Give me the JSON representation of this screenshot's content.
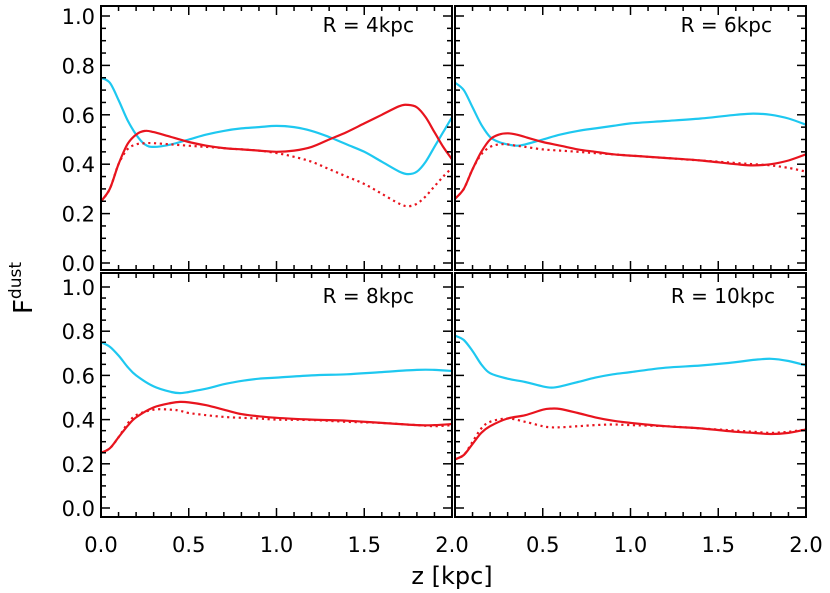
{
  "figure": {
    "ylabel": "F",
    "ylabel_sup": "dust",
    "xlabel": "z [kpc]"
  },
  "colors": {
    "cyan": "#1ec8f0",
    "red": "#e8141e",
    "axis": "#000000"
  },
  "chart_data": [
    {
      "type": "line",
      "title": "R = 4kpc",
      "xlim": [
        0,
        2
      ],
      "ylim": [
        0,
        1
      ],
      "xticks": [],
      "yticks": [
        "0.0",
        "0.2",
        "0.4",
        "0.6",
        "0.8",
        "1.0"
      ],
      "series": [
        {
          "name": "cyan-solid",
          "style": "solid",
          "color": "cyan",
          "x": [
            0,
            0.05,
            0.1,
            0.15,
            0.2,
            0.25,
            0.3,
            0.4,
            0.5,
            0.6,
            0.7,
            0.8,
            0.9,
            1.0,
            1.1,
            1.2,
            1.3,
            1.4,
            1.5,
            1.6,
            1.7,
            1.75,
            1.8,
            1.85,
            1.9,
            1.95,
            2.0
          ],
          "y": [
            0.75,
            0.73,
            0.66,
            0.58,
            0.52,
            0.48,
            0.47,
            0.48,
            0.5,
            0.52,
            0.535,
            0.545,
            0.55,
            0.555,
            0.55,
            0.535,
            0.51,
            0.48,
            0.45,
            0.41,
            0.37,
            0.36,
            0.37,
            0.41,
            0.47,
            0.53,
            0.59
          ]
        },
        {
          "name": "red-solid",
          "style": "solid",
          "color": "red",
          "x": [
            0,
            0.05,
            0.1,
            0.15,
            0.2,
            0.25,
            0.3,
            0.4,
            0.5,
            0.6,
            0.7,
            0.8,
            0.9,
            1.0,
            1.1,
            1.2,
            1.3,
            1.4,
            1.5,
            1.6,
            1.7,
            1.75,
            1.8,
            1.85,
            1.9,
            1.95,
            2.0
          ],
          "y": [
            0.25,
            0.3,
            0.4,
            0.48,
            0.52,
            0.535,
            0.53,
            0.51,
            0.49,
            0.475,
            0.465,
            0.46,
            0.455,
            0.45,
            0.455,
            0.47,
            0.5,
            0.53,
            0.565,
            0.6,
            0.635,
            0.64,
            0.63,
            0.59,
            0.53,
            0.47,
            0.42
          ]
        },
        {
          "name": "red-dotted",
          "style": "dotted",
          "color": "red",
          "x": [
            0,
            0.05,
            0.1,
            0.15,
            0.2,
            0.25,
            0.3,
            0.4,
            0.5,
            0.6,
            0.7,
            0.8,
            0.9,
            1.0,
            1.1,
            1.2,
            1.3,
            1.4,
            1.5,
            1.6,
            1.7,
            1.75,
            1.8,
            1.85,
            1.9,
            1.95,
            2.0
          ],
          "y": [
            0.25,
            0.3,
            0.4,
            0.46,
            0.48,
            0.485,
            0.485,
            0.48,
            0.475,
            0.47,
            0.465,
            0.46,
            0.455,
            0.445,
            0.43,
            0.41,
            0.38,
            0.35,
            0.32,
            0.28,
            0.24,
            0.23,
            0.24,
            0.27,
            0.31,
            0.35,
            0.385
          ]
        }
      ]
    },
    {
      "type": "line",
      "title": "R = 6kpc",
      "xlim": [
        0,
        2
      ],
      "ylim": [
        0,
        1
      ],
      "xticks": [],
      "yticks": [],
      "series": [
        {
          "name": "cyan-solid",
          "style": "solid",
          "color": "cyan",
          "x": [
            0,
            0.05,
            0.1,
            0.15,
            0.2,
            0.25,
            0.3,
            0.35,
            0.4,
            0.5,
            0.6,
            0.7,
            0.8,
            0.9,
            1.0,
            1.2,
            1.4,
            1.6,
            1.7,
            1.8,
            1.9,
            2.0
          ],
          "y": [
            0.73,
            0.7,
            0.63,
            0.56,
            0.51,
            0.49,
            0.48,
            0.475,
            0.48,
            0.5,
            0.52,
            0.535,
            0.545,
            0.555,
            0.565,
            0.575,
            0.585,
            0.6,
            0.605,
            0.6,
            0.585,
            0.56
          ]
        },
        {
          "name": "red-solid",
          "style": "solid",
          "color": "red",
          "x": [
            0,
            0.05,
            0.1,
            0.15,
            0.2,
            0.25,
            0.3,
            0.35,
            0.4,
            0.5,
            0.6,
            0.7,
            0.8,
            0.9,
            1.0,
            1.2,
            1.4,
            1.6,
            1.7,
            1.8,
            1.9,
            2.0
          ],
          "y": [
            0.26,
            0.3,
            0.38,
            0.45,
            0.5,
            0.52,
            0.525,
            0.52,
            0.51,
            0.49,
            0.475,
            0.46,
            0.45,
            0.44,
            0.435,
            0.425,
            0.415,
            0.4,
            0.395,
            0.4,
            0.415,
            0.44
          ]
        },
        {
          "name": "red-dotted",
          "style": "dotted",
          "color": "red",
          "x": [
            0,
            0.05,
            0.1,
            0.15,
            0.2,
            0.25,
            0.3,
            0.35,
            0.4,
            0.5,
            0.6,
            0.7,
            0.8,
            0.9,
            1.0,
            1.2,
            1.4,
            1.6,
            1.7,
            1.8,
            1.9,
            2.0
          ],
          "y": [
            0.26,
            0.3,
            0.38,
            0.44,
            0.47,
            0.48,
            0.48,
            0.475,
            0.47,
            0.46,
            0.455,
            0.45,
            0.445,
            0.44,
            0.435,
            0.425,
            0.415,
            0.405,
            0.4,
            0.395,
            0.385,
            0.37
          ]
        }
      ]
    },
    {
      "type": "line",
      "title": "R = 8kpc",
      "xlim": [
        0,
        2
      ],
      "ylim": [
        0,
        1
      ],
      "xticks": [
        "0.0",
        "0.5",
        "1.0",
        "1.5",
        "2.0"
      ],
      "yticks": [
        "0.0",
        "0.2",
        "0.4",
        "0.6",
        "0.8",
        "1.0"
      ],
      "series": [
        {
          "name": "cyan-solid",
          "style": "solid",
          "color": "cyan",
          "x": [
            0,
            0.05,
            0.1,
            0.15,
            0.2,
            0.3,
            0.4,
            0.45,
            0.5,
            0.6,
            0.7,
            0.8,
            0.9,
            1.0,
            1.2,
            1.4,
            1.6,
            1.8,
            1.9,
            2.0
          ],
          "y": [
            0.75,
            0.73,
            0.69,
            0.64,
            0.6,
            0.55,
            0.525,
            0.52,
            0.525,
            0.54,
            0.56,
            0.575,
            0.585,
            0.59,
            0.6,
            0.605,
            0.615,
            0.625,
            0.625,
            0.62
          ]
        },
        {
          "name": "red-solid",
          "style": "solid",
          "color": "red",
          "x": [
            0,
            0.05,
            0.1,
            0.15,
            0.2,
            0.3,
            0.4,
            0.45,
            0.5,
            0.6,
            0.7,
            0.8,
            0.9,
            1.0,
            1.2,
            1.4,
            1.6,
            1.8,
            1.9,
            2.0
          ],
          "y": [
            0.25,
            0.27,
            0.32,
            0.37,
            0.41,
            0.455,
            0.475,
            0.48,
            0.478,
            0.465,
            0.445,
            0.425,
            0.415,
            0.408,
            0.4,
            0.395,
            0.385,
            0.375,
            0.375,
            0.38
          ]
        },
        {
          "name": "red-dotted",
          "style": "dotted",
          "color": "red",
          "x": [
            0,
            0.05,
            0.1,
            0.15,
            0.2,
            0.3,
            0.4,
            0.45,
            0.5,
            0.6,
            0.7,
            0.8,
            0.9,
            1.0,
            1.2,
            1.4,
            1.6,
            1.8,
            1.9,
            2.0
          ],
          "y": [
            0.25,
            0.27,
            0.32,
            0.38,
            0.42,
            0.445,
            0.445,
            0.44,
            0.43,
            0.42,
            0.412,
            0.408,
            0.405,
            0.4,
            0.398,
            0.39,
            0.385,
            0.375,
            0.37,
            0.375
          ]
        }
      ]
    },
    {
      "type": "line",
      "title": "R = 10kpc",
      "xlim": [
        0,
        2
      ],
      "ylim": [
        0,
        1
      ],
      "xticks": [
        "0.5",
        "1.0",
        "1.5",
        "2.0"
      ],
      "yticks": [],
      "series": [
        {
          "name": "cyan-solid",
          "style": "solid",
          "color": "cyan",
          "x": [
            0,
            0.05,
            0.1,
            0.15,
            0.2,
            0.3,
            0.4,
            0.5,
            0.55,
            0.6,
            0.7,
            0.8,
            0.9,
            1.0,
            1.2,
            1.4,
            1.6,
            1.7,
            1.8,
            1.9,
            2.0
          ],
          "y": [
            0.78,
            0.76,
            0.71,
            0.65,
            0.61,
            0.585,
            0.57,
            0.55,
            0.545,
            0.55,
            0.57,
            0.59,
            0.605,
            0.615,
            0.635,
            0.645,
            0.66,
            0.67,
            0.675,
            0.665,
            0.645
          ]
        },
        {
          "name": "red-solid",
          "style": "solid",
          "color": "red",
          "x": [
            0,
            0.05,
            0.1,
            0.15,
            0.2,
            0.3,
            0.4,
            0.5,
            0.55,
            0.6,
            0.7,
            0.8,
            0.9,
            1.0,
            1.2,
            1.4,
            1.6,
            1.7,
            1.8,
            1.9,
            2.0
          ],
          "y": [
            0.22,
            0.24,
            0.29,
            0.34,
            0.37,
            0.405,
            0.42,
            0.445,
            0.45,
            0.448,
            0.43,
            0.41,
            0.395,
            0.385,
            0.37,
            0.36,
            0.345,
            0.34,
            0.335,
            0.34,
            0.355
          ]
        },
        {
          "name": "red-dotted",
          "style": "dotted",
          "color": "red",
          "x": [
            0,
            0.05,
            0.1,
            0.15,
            0.2,
            0.3,
            0.4,
            0.5,
            0.55,
            0.6,
            0.7,
            0.8,
            0.9,
            1.0,
            1.2,
            1.4,
            1.6,
            1.7,
            1.8,
            1.9,
            2.0
          ],
          "y": [
            0.22,
            0.24,
            0.3,
            0.36,
            0.39,
            0.405,
            0.39,
            0.37,
            0.365,
            0.365,
            0.37,
            0.375,
            0.378,
            0.375,
            0.37,
            0.36,
            0.35,
            0.345,
            0.34,
            0.345,
            0.355
          ]
        }
      ]
    }
  ]
}
